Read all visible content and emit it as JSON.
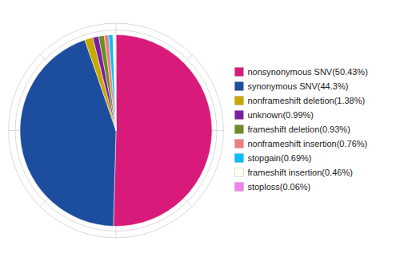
{
  "chart_data": {
    "type": "pie",
    "categories": [
      "nonsynonymous SNV(50.43%)",
      "synonymous SNV(44.3%)",
      "nonframeshift deletion(1.38%)",
      "unknown(0.99%)",
      "frameshift deletion(0.93%)",
      "nonframeshift insertion(0.76%)",
      "stopgain(0.69%)",
      "frameshift insertion(0.46%)",
      "stoploss(0.06%)"
    ],
    "values": [
      50.43,
      44.3,
      1.38,
      0.99,
      0.93,
      0.76,
      0.69,
      0.46,
      0.06
    ],
    "colors": [
      "#D81B7A",
      "#1C4D9E",
      "#C9A800",
      "#7B1FA2",
      "#6B8E23",
      "#F08080",
      "#00BFFF",
      "#FFFFF0",
      "#EE82EE"
    ],
    "legend": "right"
  }
}
